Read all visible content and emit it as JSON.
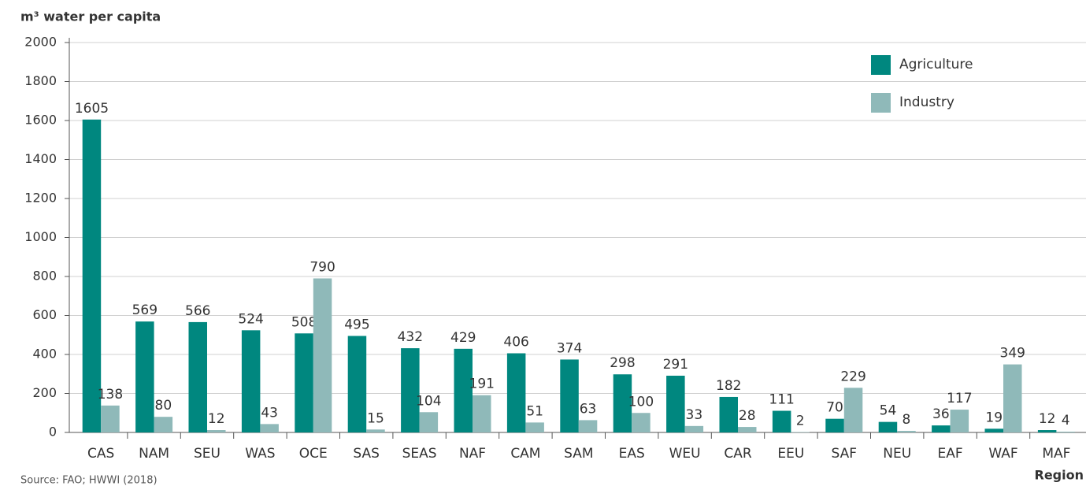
{
  "chart_data": {
    "type": "bar",
    "y_label": "m³ water per capita",
    "x_label": "Region",
    "source": "Source: FAO; HWWI (2018)",
    "categories": [
      "CAS",
      "NAM",
      "SEU",
      "WAS",
      "OCE",
      "SAS",
      "SEAS",
      "NAF",
      "CAM",
      "SAM",
      "EAS",
      "WEU",
      "CAR",
      "EEU",
      "SAF",
      "NEU",
      "EAF",
      "WAF",
      "MAF"
    ],
    "series": [
      {
        "name": "Agriculture",
        "color": "#00877f",
        "values": [
          1605,
          569,
          566,
          524,
          508,
          495,
          432,
          429,
          406,
          374,
          298,
          291,
          182,
          111,
          70,
          54,
          36,
          19,
          12
        ]
      },
      {
        "name": "Industry",
        "color": "#8fb9b9",
        "values": [
          138,
          80,
          12,
          43,
          790,
          15,
          104,
          191,
          51,
          63,
          100,
          33,
          28,
          2,
          229,
          8,
          117,
          349,
          4
        ]
      }
    ],
    "ylim": [
      0,
      2000
    ],
    "yticks": [
      0,
      200,
      400,
      600,
      800,
      1000,
      1200,
      1400,
      1600,
      1800,
      2000
    ],
    "grid": true,
    "legend": "top-right"
  }
}
